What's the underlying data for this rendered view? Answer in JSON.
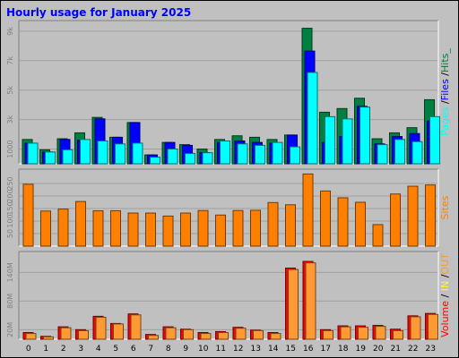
{
  "chart_data": {
    "title": "Hourly usage for January 2025",
    "x": [
      "0",
      "1",
      "2",
      "3",
      "4",
      "5",
      "6",
      "7",
      "8",
      "9",
      "10",
      "11",
      "12",
      "13",
      "14",
      "15",
      "16",
      "17",
      "18",
      "19",
      "20",
      "21",
      "22",
      "23"
    ],
    "colors": {
      "pages": "#00ffff",
      "files": "#0000ff",
      "hits": "#008040",
      "sites": "#ff8000",
      "volume": "#ff0000",
      "in": "#ffff00",
      "out": "#ff9933",
      "title": "#0000ff",
      "sidelabel_sep": "#000000"
    },
    "charts": [
      {
        "type": "bar",
        "name": "hits-files-pages",
        "ytick_labels": [
          "1000",
          "3k",
          "5k",
          "7k",
          "9k"
        ],
        "ytick_values": [
          1000,
          3000,
          5000,
          7000,
          9000
        ],
        "ylim": [
          0,
          9600
        ],
        "side_label": [
          {
            "text": "Pages",
            "color": "#00ffff"
          },
          {
            "text": " /",
            "color": "#000000"
          },
          {
            "text": "Files",
            "color": "#0000ff"
          },
          {
            "text": " /",
            "color": "#000000"
          },
          {
            "text": "Hits_",
            "color": "#008040"
          }
        ],
        "series": [
          {
            "name": "Hits",
            "color": "#008040",
            "values": [
              1650,
              950,
              1700,
              2100,
              3150,
              1800,
              2800,
              600,
              1450,
              1300,
              1000,
              1650,
              1900,
              1800,
              1650,
              1950,
              9200,
              3500,
              3750,
              4450,
              1700,
              2100,
              2450,
              4350
            ]
          },
          {
            "name": "Files",
            "color": "#0000ff",
            "values": [
              1400,
              800,
              1650,
              1600,
              3050,
              1800,
              2800,
              600,
              1450,
              1250,
              750,
              1450,
              1550,
              1450,
              1400,
              1950,
              7650,
              1450,
              1850,
              3900,
              1350,
              1850,
              2050,
              2900
            ]
          },
          {
            "name": "Pages",
            "color": "#00ffff",
            "values": [
              1400,
              800,
              950,
              1650,
              1550,
              1350,
              1400,
              450,
              1000,
              700,
              750,
              1550,
              1350,
              1250,
              1450,
              1150,
              6200,
              3200,
              3050,
              3850,
              1300,
              1650,
              1500,
              3200
            ]
          }
        ]
      },
      {
        "type": "bar",
        "name": "sites",
        "ytick_labels": [
          "50",
          "100",
          "150",
          "200",
          "250"
        ],
        "ytick_values": [
          50,
          100,
          150,
          200,
          250
        ],
        "ylim": [
          0,
          300
        ],
        "side_label": [
          {
            "text": "Sites",
            "color": "#ff8000"
          }
        ],
        "series": [
          {
            "name": "Sites",
            "color": "#ff8000",
            "values": [
              247,
              140,
              148,
              178,
              141,
              141,
              132,
              132,
              120,
              132,
              142,
              124,
              142,
              143,
              174,
              165,
              288,
              220,
              193,
              175,
              86,
              208,
              239,
              244
            ]
          }
        ]
      },
      {
        "type": "bar",
        "name": "volume",
        "ytick_labels": [
          "20M",
          "80M",
          "140M"
        ],
        "ytick_values": [
          20,
          80,
          140
        ],
        "ylim": [
          0,
          180
        ],
        "side_label": [
          {
            "text": "Volume",
            "color": "#ff0000"
          },
          {
            "text": " /",
            "color": "#000000"
          },
          {
            "text": " IN",
            "color": "#ffff00"
          },
          {
            "text": " /",
            "color": "#000000"
          },
          {
            "text": "OUT",
            "color": "#ff9933"
          }
        ],
        "series": [
          {
            "name": "Volume",
            "color": "#ff0000",
            "values": [
              14,
              6,
              26,
              20,
              48,
              33,
              53,
              10,
              26,
              21,
              14,
              16,
              25,
              19,
              14,
              149,
              163,
              20,
              28,
              28,
              29,
              21,
              49,
              54
            ]
          },
          {
            "name": "OUT",
            "color": "#ff9933",
            "values": [
              12,
              5,
              24,
              18,
              46,
              32,
              51,
              8,
              24,
              20,
              12,
              14,
              23,
              18,
              12,
              146,
              160,
              18,
              26,
              25,
              27,
              18,
              47,
              52
            ]
          }
        ]
      }
    ]
  }
}
